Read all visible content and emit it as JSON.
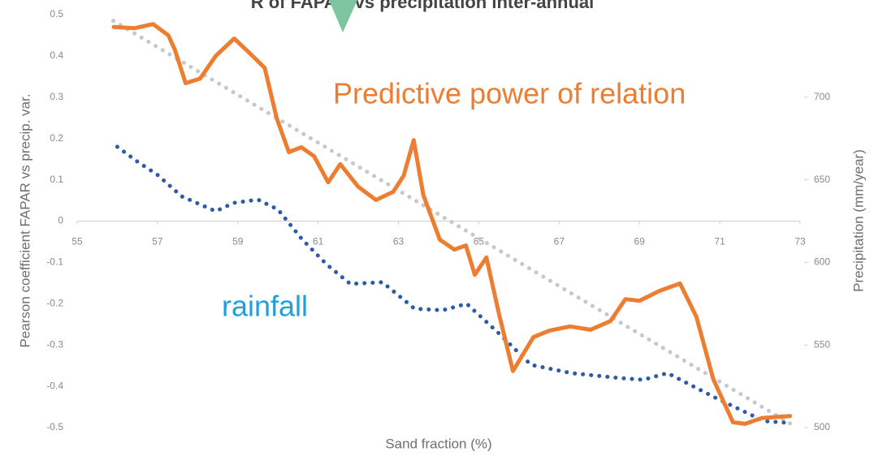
{
  "chart_data": {
    "type": "line",
    "title": "R of FAPAR vs precipitation inter-annual",
    "x_label": "Sand fraction (%)",
    "y_label": "Pearson coefficient FAPAR vs precip. var.",
    "y2_label": "Precipitation (mm/year)",
    "annotations": [
      {
        "text": "Predictive power of relation",
        "color": "#ed7d31"
      },
      {
        "text": "rainfall",
        "color": "#1ea0e0"
      }
    ],
    "xlim": [
      55,
      73
    ],
    "xticks": [
      55,
      57,
      59,
      61,
      63,
      65,
      67,
      69,
      71,
      73
    ],
    "ylim": [
      -0.5,
      0.5
    ],
    "yticks": [
      0.5,
      0.4,
      0.3,
      0.2,
      0.1,
      0,
      -0.1,
      -0.2,
      -0.3,
      -0.4,
      -0.5
    ],
    "y2lim": [
      500,
      750
    ],
    "y2ticks": [
      500,
      550,
      600,
      650,
      700
    ],
    "series": [
      {
        "color": "#c8c8c8",
        "style": "dotted",
        "axis": "y",
        "x": [
          55.9,
          72.75
        ],
        "values": [
          0.485,
          -0.49
        ]
      },
      {
        "color": "#2e5aa8",
        "style": "dotted",
        "axis": "y2",
        "x": [
          56,
          56.5,
          57,
          57.6,
          58.45,
          58.9,
          59.5,
          60,
          60.6,
          61.2,
          61.8,
          62.6,
          63.4,
          64.1,
          64.7,
          65.5,
          66.3,
          67.3,
          68.5,
          69.1,
          69.7,
          70.9,
          72.1,
          72.65
        ],
        "values": [
          670,
          661,
          653,
          640,
          631,
          636,
          638,
          632,
          614,
          599,
          587,
          588,
          572,
          571,
          575,
          557,
          538,
          533,
          530,
          529,
          533,
          518,
          504,
          503
        ]
      },
      {
        "color": "#ed7d31",
        "style": "solid",
        "axis": "y",
        "x": [
          55.91,
          56.42,
          56.89,
          57.27,
          57.43,
          57.7,
          58.06,
          58.45,
          58.91,
          59.26,
          59.67,
          59.97,
          60.27,
          60.58,
          60.9,
          61.25,
          61.55,
          62.0,
          62.44,
          62.87,
          63.13,
          63.38,
          63.62,
          64.03,
          64.39,
          64.68,
          64.9,
          65.19,
          65.51,
          65.85,
          66.36,
          66.76,
          67.27,
          67.78,
          68.28,
          68.65,
          69.0,
          69.5,
          70.01,
          70.42,
          70.84,
          71.33,
          71.63,
          72.04,
          72.75
        ],
        "values": [
          0.47,
          0.467,
          0.477,
          0.45,
          0.416,
          0.334,
          0.345,
          0.4,
          0.442,
          0.41,
          0.371,
          0.249,
          0.167,
          0.179,
          0.157,
          0.094,
          0.138,
          0.083,
          0.051,
          0.071,
          0.11,
          0.196,
          0.063,
          -0.045,
          -0.069,
          -0.059,
          -0.13,
          -0.088,
          -0.228,
          -0.363,
          -0.281,
          -0.265,
          -0.255,
          -0.263,
          -0.242,
          -0.189,
          -0.193,
          -0.169,
          -0.151,
          -0.232,
          -0.383,
          -0.487,
          -0.491,
          -0.477,
          -0.472
        ]
      }
    ]
  }
}
